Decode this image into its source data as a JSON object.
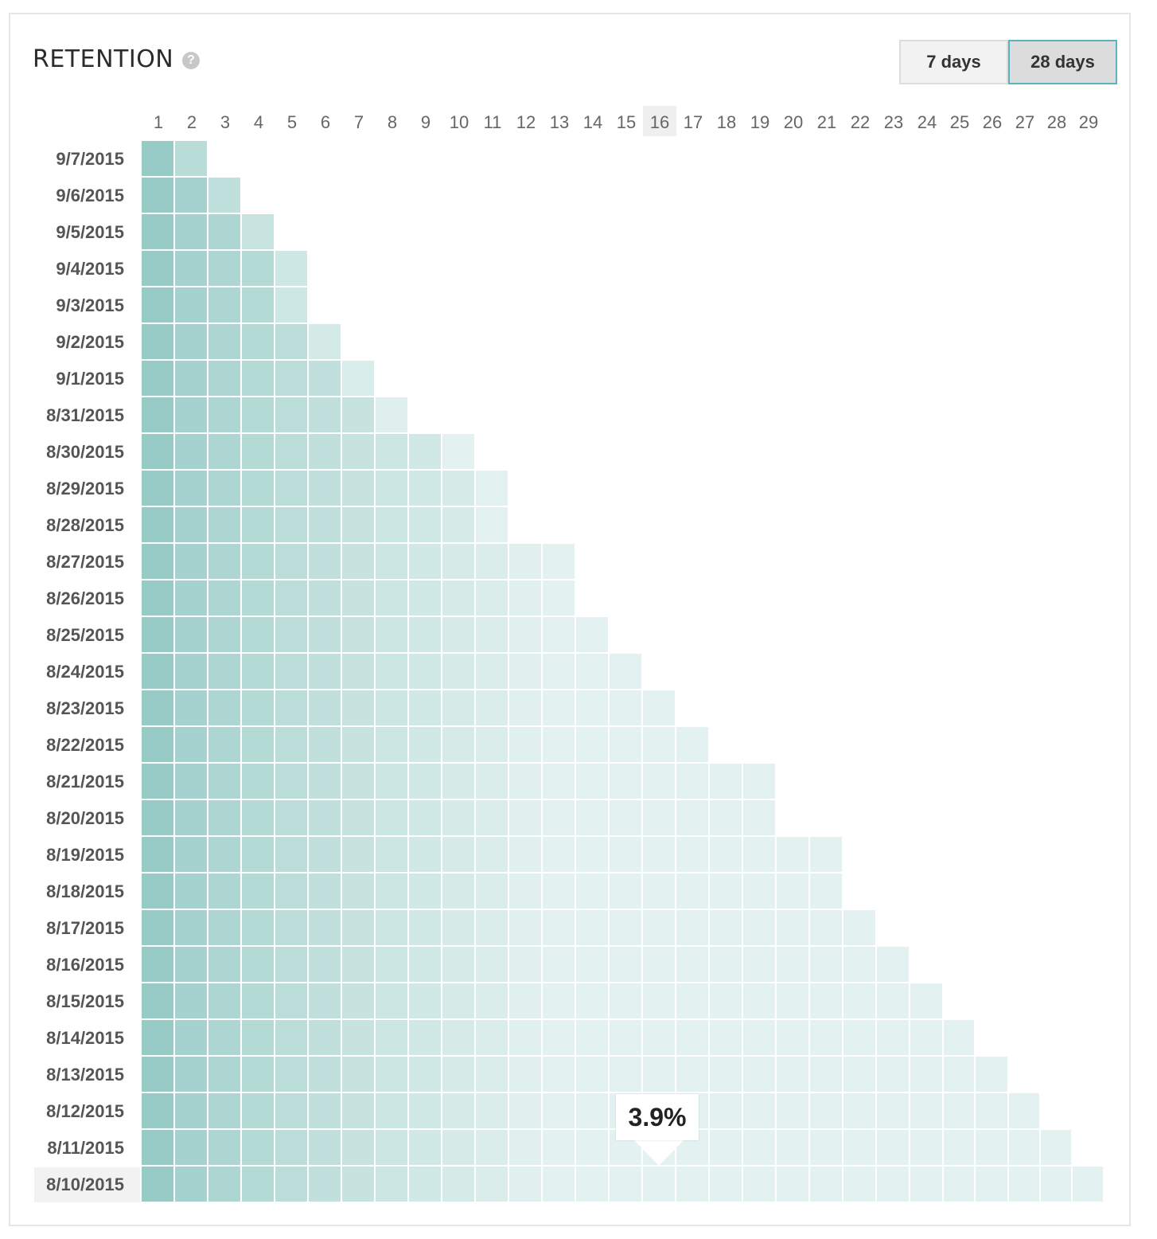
{
  "header": {
    "title": "RETENTION",
    "help_icon": "question-circle-icon",
    "help_glyph": "?"
  },
  "range_toggle": {
    "options": [
      "7 days",
      "28 days"
    ],
    "selected": "28 days"
  },
  "columns": [
    "1",
    "2",
    "3",
    "4",
    "5",
    "6",
    "7",
    "8",
    "9",
    "10",
    "11",
    "12",
    "13",
    "14",
    "15",
    "16",
    "17",
    "18",
    "19",
    "20",
    "21",
    "22",
    "23",
    "24",
    "25",
    "26",
    "27",
    "28",
    "29"
  ],
  "highlighted_column": "16",
  "rows": [
    {
      "date": "9/7/2015",
      "cells": 2
    },
    {
      "date": "9/6/2015",
      "cells": 3
    },
    {
      "date": "9/5/2015",
      "cells": 4
    },
    {
      "date": "9/4/2015",
      "cells": 5
    },
    {
      "date": "9/3/2015",
      "cells": 5
    },
    {
      "date": "9/2/2015",
      "cells": 6
    },
    {
      "date": "9/1/2015",
      "cells": 7
    },
    {
      "date": "8/31/2015",
      "cells": 8
    },
    {
      "date": "8/30/2015",
      "cells": 10
    },
    {
      "date": "8/29/2015",
      "cells": 11
    },
    {
      "date": "8/28/2015",
      "cells": 11
    },
    {
      "date": "8/27/2015",
      "cells": 13
    },
    {
      "date": "8/26/2015",
      "cells": 13
    },
    {
      "date": "8/25/2015",
      "cells": 14
    },
    {
      "date": "8/24/2015",
      "cells": 15
    },
    {
      "date": "8/23/2015",
      "cells": 16
    },
    {
      "date": "8/22/2015",
      "cells": 17
    },
    {
      "date": "8/21/2015",
      "cells": 19
    },
    {
      "date": "8/20/2015",
      "cells": 19
    },
    {
      "date": "8/19/2015",
      "cells": 21
    },
    {
      "date": "8/18/2015",
      "cells": 21
    },
    {
      "date": "8/17/2015",
      "cells": 22
    },
    {
      "date": "8/16/2015",
      "cells": 23
    },
    {
      "date": "8/15/2015",
      "cells": 24
    },
    {
      "date": "8/14/2015",
      "cells": 25
    },
    {
      "date": "8/13/2015",
      "cells": 26
    },
    {
      "date": "8/12/2015",
      "cells": 27
    },
    {
      "date": "8/11/2015",
      "cells": 28
    },
    {
      "date": "8/10/2015",
      "cells": 29
    }
  ],
  "highlighted_row": "8/10/2015",
  "tooltip": {
    "text": "3.9%",
    "row": "8/10/2015",
    "column": "16"
  },
  "colors": {
    "heat_high": "#94c9c3",
    "heat_low": "#e3f2f0",
    "accent": "#5bb3c0"
  }
}
